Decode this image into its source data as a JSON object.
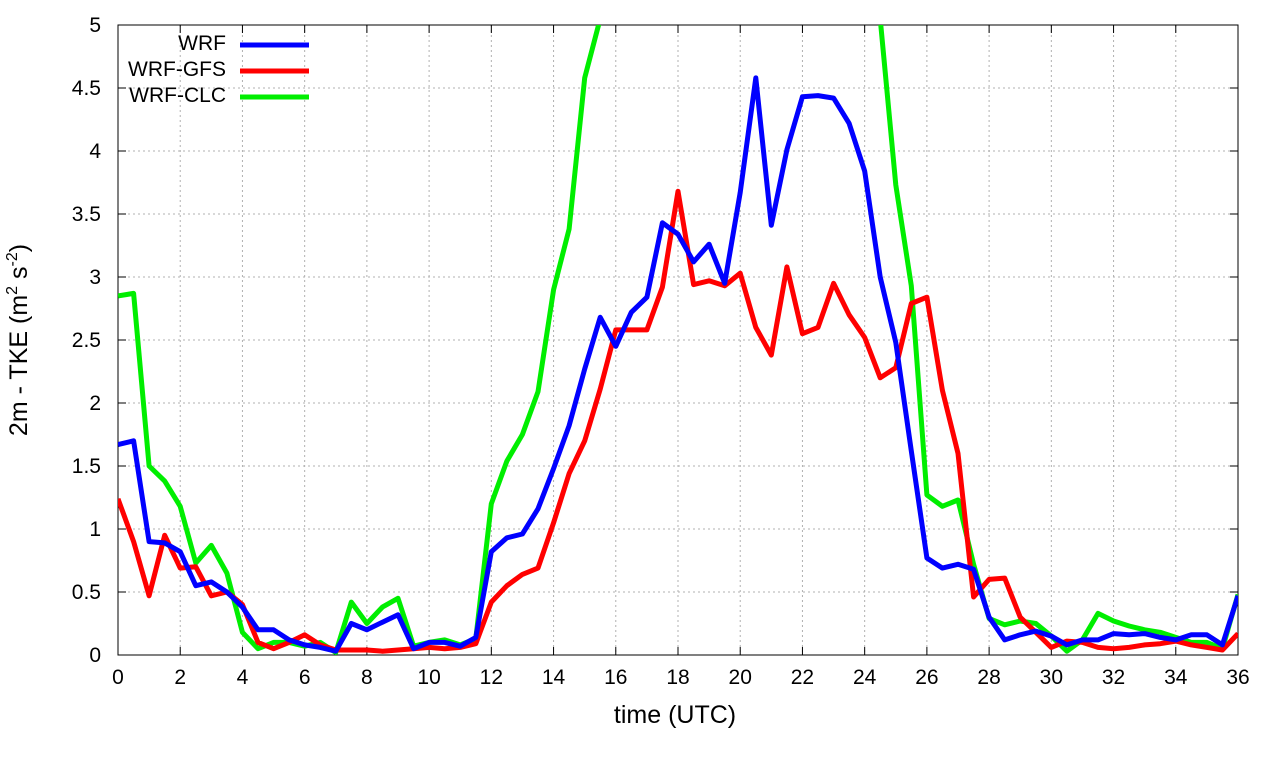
{
  "chart_data": {
    "type": "line",
    "xlabel": "time (UTC)",
    "ylabel_main": "2m - TKE (m",
    "ylabel_sup1": "2",
    "ylabel_mid": " s",
    "ylabel_sup2": "-2",
    "ylabel_end": ")",
    "xlim": [
      0,
      36
    ],
    "ylim": [
      0,
      5
    ],
    "x_ticks": [
      0,
      2,
      4,
      6,
      8,
      10,
      12,
      14,
      16,
      18,
      20,
      22,
      24,
      26,
      28,
      30,
      32,
      34,
      36
    ],
    "y_ticks": [
      "0",
      "0.5",
      "1",
      "1.5",
      "2",
      "2.5",
      "3",
      "3.5",
      "4",
      "4.5",
      "5"
    ],
    "grid": true,
    "legend_position": "top-left",
    "series": [
      {
        "name": "WRF",
        "color": "#0000ff",
        "x": [
          0,
          0.5,
          1,
          1.5,
          2,
          2.5,
          3,
          3.5,
          4,
          4.5,
          5,
          5.5,
          6,
          6.5,
          7,
          7.5,
          8,
          8.5,
          9,
          9.5,
          10,
          10.5,
          11,
          11.5,
          12,
          12.5,
          13,
          13.5,
          14,
          14.5,
          15,
          15.5,
          16,
          16.5,
          17,
          17.5,
          18,
          18.5,
          19,
          19.5,
          20,
          20.5,
          21,
          21.5,
          22,
          22.5,
          23,
          23.5,
          24,
          24.5,
          25,
          25.5,
          26,
          26.5,
          27,
          27.5,
          28,
          28.5,
          29,
          29.5,
          30,
          30.5,
          31,
          31.5,
          32,
          32.5,
          33,
          33.5,
          34,
          34.5,
          35,
          35.5,
          36
        ],
        "y": [
          1.67,
          1.7,
          0.9,
          0.89,
          0.82,
          0.55,
          0.58,
          0.5,
          0.38,
          0.2,
          0.2,
          0.12,
          0.08,
          0.06,
          0.03,
          0.25,
          0.2,
          0.26,
          0.32,
          0.05,
          0.1,
          0.1,
          0.07,
          0.14,
          0.82,
          0.93,
          0.96,
          1.16,
          1.48,
          1.82,
          2.27,
          2.68,
          2.45,
          2.72,
          2.84,
          3.43,
          3.34,
          3.12,
          3.26,
          2.95,
          3.67,
          4.58,
          3.41,
          4.01,
          4.43,
          4.44,
          4.42,
          4.22,
          3.84,
          3.0,
          2.48,
          1.62,
          0.77,
          0.69,
          0.72,
          0.68,
          0.3,
          0.12,
          0.16,
          0.19,
          0.15,
          0.08,
          0.12,
          0.12,
          0.17,
          0.16,
          0.17,
          0.14,
          0.12,
          0.16,
          0.16,
          0.08,
          0.47
        ]
      },
      {
        "name": "WRF-GFS",
        "color": "#ff0000",
        "x": [
          0,
          0.5,
          1,
          1.5,
          2,
          2.5,
          3,
          3.5,
          4,
          4.5,
          5,
          5.5,
          6,
          6.5,
          7,
          7.5,
          8,
          8.5,
          9,
          9.5,
          10,
          10.5,
          11,
          11.5,
          12,
          12.5,
          13,
          13.5,
          14,
          14.5,
          15,
          15.5,
          16,
          16.5,
          17,
          17.5,
          18,
          18.5,
          19,
          19.5,
          20,
          20.5,
          21,
          21.5,
          22,
          22.5,
          23,
          23.5,
          24,
          24.5,
          25,
          25.5,
          26,
          26.5,
          27,
          27.5,
          28,
          28.5,
          29,
          29.5,
          30,
          30.5,
          31,
          31.5,
          32,
          32.5,
          33,
          33.5,
          34,
          34.5,
          35,
          35.5,
          36
        ],
        "y": [
          1.24,
          0.9,
          0.47,
          0.95,
          0.69,
          0.7,
          0.47,
          0.5,
          0.4,
          0.1,
          0.05,
          0.1,
          0.16,
          0.08,
          0.04,
          0.04,
          0.04,
          0.03,
          0.04,
          0.05,
          0.06,
          0.05,
          0.06,
          0.09,
          0.42,
          0.55,
          0.64,
          0.69,
          1.05,
          1.44,
          1.7,
          2.11,
          2.58,
          2.58,
          2.58,
          2.92,
          3.68,
          2.94,
          2.97,
          2.93,
          3.03,
          2.6,
          2.38,
          3.08,
          2.55,
          2.6,
          2.95,
          2.7,
          2.52,
          2.2,
          2.28,
          2.79,
          2.84,
          2.1,
          1.6,
          0.46,
          0.6,
          0.61,
          0.3,
          0.18,
          0.06,
          0.11,
          0.1,
          0.06,
          0.05,
          0.06,
          0.08,
          0.09,
          0.11,
          0.08,
          0.06,
          0.04,
          0.17
        ]
      },
      {
        "name": "WRF-CLC",
        "color": "#00ee00",
        "x": [
          0,
          0.5,
          1,
          1.5,
          2,
          2.5,
          3,
          3.5,
          4,
          4.5,
          5,
          5.5,
          6,
          6.5,
          7,
          7.5,
          8,
          8.5,
          9,
          9.5,
          10,
          10.5,
          11,
          11.5,
          12,
          12.5,
          13,
          13.5,
          14,
          14.5,
          15,
          15.5,
          16,
          24.5,
          25,
          25.5,
          26,
          26.5,
          27,
          27.5,
          28,
          28.5,
          29,
          29.5,
          30,
          30.5,
          31,
          31.5,
          32,
          32.5,
          33,
          33.5,
          34,
          34.5,
          35,
          35.5,
          36
        ],
        "y": [
          2.85,
          2.87,
          1.5,
          1.38,
          1.18,
          0.73,
          0.87,
          0.65,
          0.18,
          0.05,
          0.1,
          0.1,
          0.07,
          0.1,
          0.02,
          0.42,
          0.25,
          0.38,
          0.45,
          0.07,
          0.1,
          0.12,
          0.08,
          0.13,
          1.2,
          1.54,
          1.75,
          2.09,
          2.9,
          3.38,
          4.58,
          5.05,
          5.6,
          5.05,
          3.73,
          2.93,
          1.27,
          1.18,
          1.23,
          0.72,
          0.29,
          0.24,
          0.27,
          0.25,
          0.15,
          0.03,
          0.12,
          0.33,
          0.27,
          0.23,
          0.2,
          0.18,
          0.14,
          0.1,
          0.1,
          0.05,
          0.48
        ]
      }
    ]
  }
}
